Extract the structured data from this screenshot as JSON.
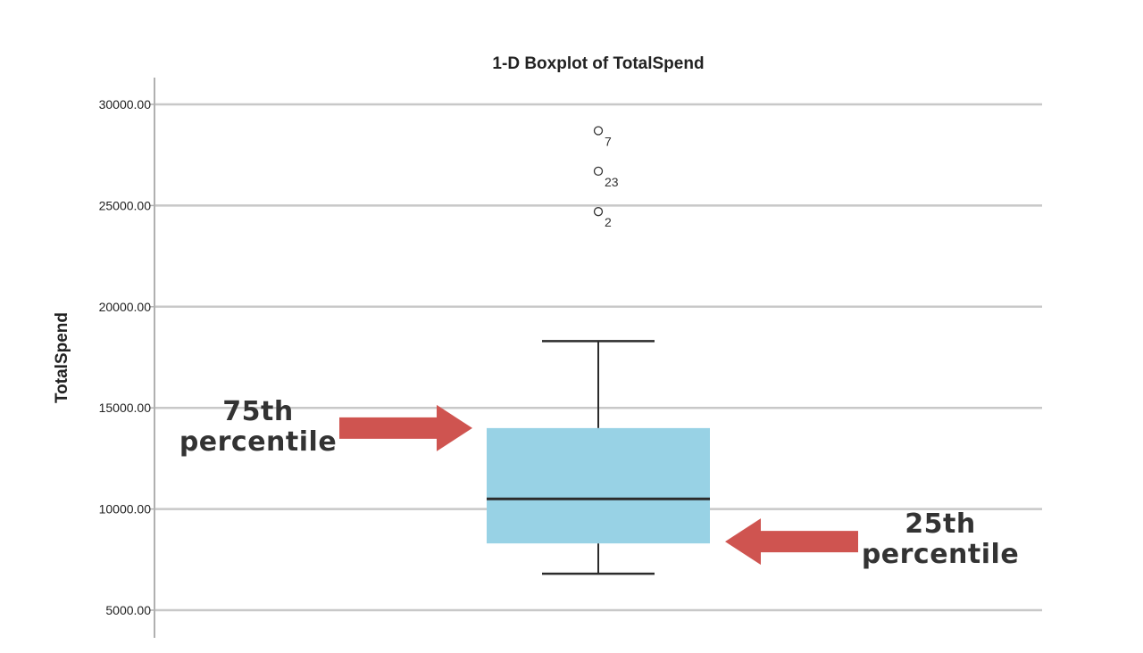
{
  "chart_data": {
    "type": "box",
    "title": "1-D Boxplot of TotalSpend",
    "xlabel": "",
    "ylabel": "TotalSpend",
    "ylim": [
      4000,
      31500
    ],
    "yticks": [
      5000,
      10000,
      15000,
      20000,
      25000,
      30000
    ],
    "ytick_labels": [
      "5000.00",
      "10000.00",
      "15000.00",
      "20000.00",
      "25000.00",
      "30000.00"
    ],
    "grid": true,
    "box": {
      "whisker_low": 6800,
      "q1": 8300,
      "median": 10500,
      "q3": 14000,
      "whisker_high": 18300,
      "color": "#98d2e5"
    },
    "outliers": [
      {
        "label": "7",
        "value": 28700
      },
      {
        "label": "23",
        "value": 26700
      },
      {
        "label": "2",
        "value": 24700
      }
    ],
    "annotations": [
      {
        "lines": [
          "75th",
          "percentile"
        ],
        "points_to": "q3",
        "arrow_direction": "right",
        "color": "#cf5450"
      },
      {
        "lines": [
          "25th",
          "percentile"
        ],
        "points_to": "q1",
        "arrow_direction": "left",
        "color": "#cf5450"
      }
    ]
  }
}
